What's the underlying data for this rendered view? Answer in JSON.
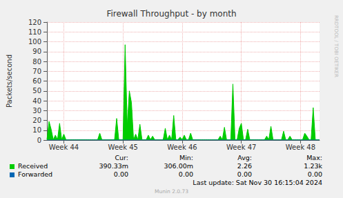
{
  "chart_data": {
    "type": "area",
    "title": "Firewall Throughput - by month",
    "y_label": "Packets/second",
    "categories": [
      null,
      null,
      null,
      null,
      null,
      null,
      null,
      null,
      "Week 44",
      null,
      null,
      null,
      null,
      null,
      null,
      null,
      null,
      null,
      null,
      null,
      null,
      null,
      null,
      null,
      null,
      null,
      null,
      null,
      null,
      null,
      null,
      null,
      null,
      null,
      null,
      null,
      "Week 45",
      null,
      null,
      null,
      null,
      null,
      null,
      null,
      null,
      null,
      null,
      null,
      null,
      null,
      null,
      null,
      null,
      null,
      null,
      null,
      null,
      null,
      null,
      null,
      null,
      null,
      null,
      null,
      "Week 46",
      null,
      null,
      null,
      null,
      null,
      null,
      null,
      null,
      null,
      null,
      null,
      null,
      null,
      null,
      null,
      null,
      null,
      null,
      null,
      null,
      null,
      null,
      null,
      null,
      null,
      null,
      null,
      "Week 47",
      null,
      null,
      null,
      null,
      null,
      null,
      null,
      null,
      null,
      null,
      null,
      null,
      null,
      null,
      null,
      null,
      null,
      null,
      null,
      null,
      null,
      null,
      null,
      null,
      null,
      null,
      null,
      "Week 48",
      null,
      null,
      null,
      null,
      null,
      null,
      null,
      null,
      null
    ],
    "series": [
      {
        "name": "Received",
        "color": "#00cc00",
        "values": [
          0.4,
          19,
          11,
          0.4,
          5,
          0.4,
          17,
          0.4,
          6,
          0.4,
          0.4,
          0.4,
          0.4,
          0.4,
          0.4,
          0.4,
          0.4,
          0.4,
          0.4,
          0.4,
          0.4,
          0.4,
          0.4,
          0.4,
          0.4,
          7,
          0.4,
          0.4,
          0.4,
          0.4,
          0.4,
          0.4,
          0.4,
          22,
          0.4,
          0.4,
          0.4,
          97,
          14,
          50,
          38,
          0.4,
          6,
          0.4,
          16,
          0.4,
          0.4,
          0.4,
          5,
          0.4,
          4,
          0.4,
          0.4,
          0.4,
          0.4,
          0.4,
          12,
          0.4,
          5,
          0.4,
          25,
          0.4,
          0.4,
          3,
          0.4,
          5,
          0.4,
          0.4,
          7,
          0.4,
          0.4,
          0.4,
          0.4,
          0.4,
          0.4,
          0.4,
          0.4,
          0.4,
          0.4,
          0.4,
          0.4,
          0.4,
          4,
          0.4,
          13,
          0.4,
          0.4,
          0.4,
          57,
          0.4,
          0.4,
          12,
          17,
          0.4,
          0.4,
          11,
          0.4,
          0.4,
          0.4,
          0.4,
          0.4,
          0.4,
          0.4,
          0.4,
          4,
          0.4,
          14,
          0.4,
          0.4,
          0.4,
          0.4,
          0.4,
          9,
          0.4,
          0.4,
          4,
          0.4,
          0.4,
          0.4,
          0.4,
          0.4,
          0.4,
          7,
          4,
          0.4,
          0.4,
          33,
          0.4,
          0.4,
          0.4
        ]
      },
      {
        "name": "Forwarded",
        "color": "#0066b3",
        "values": [
          0,
          0,
          0,
          0,
          0,
          0,
          0,
          0,
          0,
          0,
          0,
          0,
          0,
          0,
          0,
          0,
          0,
          0,
          0,
          0,
          0,
          0,
          0,
          0,
          0,
          0,
          0,
          0,
          0,
          0,
          0,
          0,
          0,
          0,
          0,
          0,
          0,
          0,
          0,
          0,
          0,
          0,
          0,
          0,
          0,
          0,
          0,
          0,
          0,
          0,
          0,
          0,
          0,
          0,
          0,
          0,
          0,
          0,
          0,
          0,
          0,
          0,
          0,
          0,
          0,
          0,
          0,
          0,
          0,
          0,
          0,
          0,
          0,
          0,
          0,
          0,
          0,
          0,
          0,
          0,
          0,
          0,
          0,
          0,
          0,
          0,
          0,
          0,
          0,
          0,
          0,
          0,
          0,
          0,
          0,
          0,
          0,
          0,
          0,
          0,
          0,
          0,
          0,
          0,
          0,
          0,
          0,
          0,
          0,
          0,
          0,
          0,
          0,
          0,
          0,
          0,
          0,
          0,
          0,
          0,
          0,
          0,
          0,
          0,
          0,
          0,
          0,
          0,
          0,
          0
        ]
      }
    ],
    "ylim": [
      0,
      120
    ],
    "yticks": [
      0,
      10,
      20,
      30,
      40,
      50,
      60,
      70,
      80,
      90,
      100,
      110,
      120
    ],
    "grid": true,
    "legend_table": {
      "columns": [
        "Cur:",
        "Min:",
        "Avg:",
        "Max:"
      ],
      "rows": [
        {
          "name": "Received",
          "values": [
            "390.33m",
            "306.00m",
            "2.26",
            "1.23k"
          ]
        },
        {
          "name": "Forwarded",
          "values": [
            "0.00",
            "0.00",
            "0.00",
            "0.00"
          ]
        }
      ]
    },
    "footer": "Last update: Sat Nov 30 16:15:04 2024",
    "generator": "Munin 2.0.73",
    "side_text": "RRDTOOL / TOBI OETIKER"
  }
}
